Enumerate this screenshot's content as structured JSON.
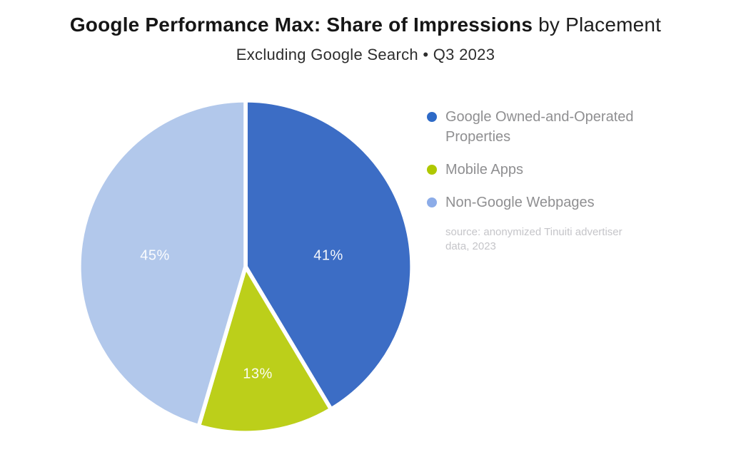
{
  "title": {
    "bold": "Google Performance Max: Share of Impressions",
    "light": " by Placement"
  },
  "subtitle": "Excluding Google Search • Q3 2023",
  "chart_data": {
    "type": "pie",
    "title": "Google Performance Max: Share of Impressions by Placement",
    "subtitle": "Excluding Google Search • Q3 2023",
    "unit": "percent",
    "start_angle_deg": 0,
    "direction": "clockwise",
    "slices": [
      {
        "name": "Google Owned-and-Operated Properties",
        "value": 41,
        "label": "41%",
        "color": "#3C6DC5"
      },
      {
        "name": "Mobile Apps",
        "value": 13,
        "label": "13%",
        "color": "#BCCF1A"
      },
      {
        "name": "Non-Google Webpages",
        "value": 45,
        "label": "45%",
        "color": "#B2C8EB"
      }
    ],
    "legend_position": "right",
    "source_note": "source: anonymized Tinuiti advertiser data, 2023"
  },
  "legend": {
    "items": [
      {
        "label": "Google Owned-and-Operated Properties",
        "dot_color": "#2E6AC7"
      },
      {
        "label": "Mobile Apps",
        "dot_color": "#AFC801"
      },
      {
        "label": "Non-Google Webpages",
        "dot_color": "#8CACE8"
      }
    ],
    "source_line1": "source: anonymized Tinuiti advertiser",
    "source_line2": "data, 2023"
  }
}
